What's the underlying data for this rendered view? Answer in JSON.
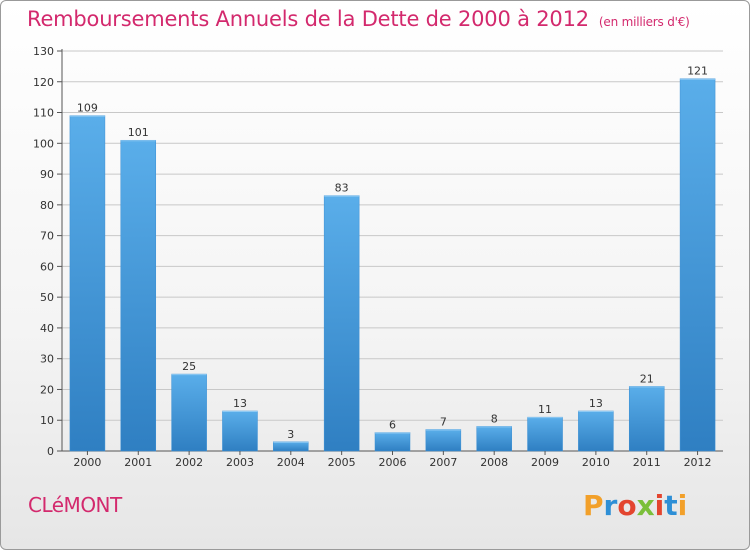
{
  "title": "Remboursements Annuels de la Dette de 2000 à 2012",
  "subtitle": "(en milliers d'€)",
  "city": "CLéMONT",
  "logo": "Proxiti",
  "colors": {
    "title": "#d3296d",
    "bar_top": "#5aaeea",
    "bar_bottom": "#2f7fc2",
    "logo_letters": [
      "#f2a02a",
      "#2e8fd6",
      "#e3452f",
      "#7bbf3a",
      "#e3452f",
      "#2e8fd6",
      "#f2a02a"
    ]
  },
  "chart_data": {
    "type": "bar",
    "title": "Remboursements Annuels de la Dette de 2000 à 2012",
    "subtitle": "(en milliers d'€)",
    "categories": [
      "2000",
      "2001",
      "2002",
      "2003",
      "2004",
      "2005",
      "2006",
      "2007",
      "2008",
      "2009",
      "2010",
      "2011",
      "2012"
    ],
    "values": [
      109,
      101,
      25,
      13,
      3,
      83,
      6,
      7,
      8,
      11,
      13,
      21,
      121
    ],
    "xlabel": "",
    "ylabel": "",
    "ylim": [
      0,
      130
    ],
    "yticks": [
      0,
      10,
      20,
      30,
      40,
      50,
      60,
      70,
      80,
      90,
      100,
      110,
      120,
      130
    ],
    "grid": true,
    "data_labels": true
  }
}
